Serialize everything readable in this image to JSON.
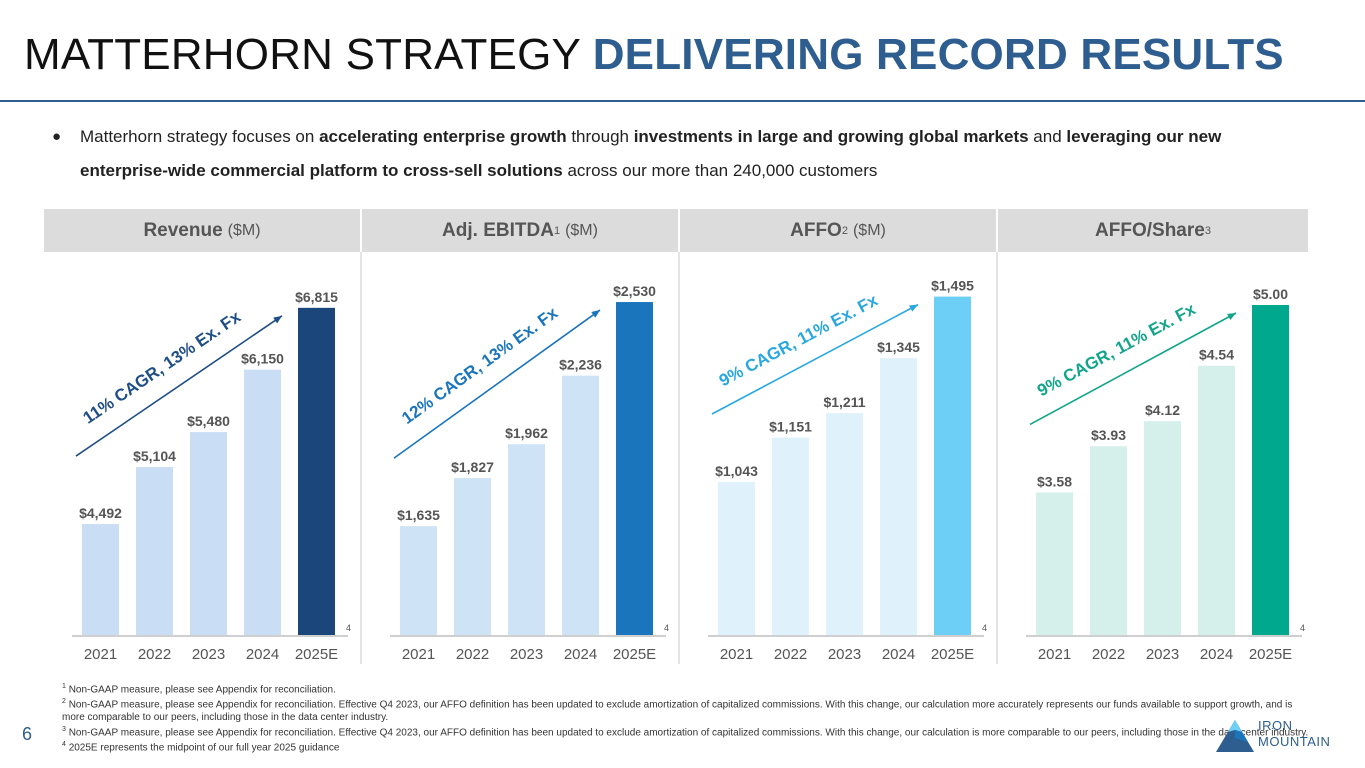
{
  "page": {
    "title_main": "MATTERHORN STRATEGY ",
    "title_accent": "DELIVERING RECORD RESULTS",
    "page_number": "6"
  },
  "bullet": {
    "symbol": "●",
    "t1": "Matterhorn strategy focuses on ",
    "b1": "accelerating enterprise growth",
    "t2": " through ",
    "b2": "investments in large and growing global markets",
    "t3": " and ",
    "b3": "leveraging our new enterprise-wide commercial platform to cross-sell solutions",
    "t4": " across our more than 240,000 customers"
  },
  "headers": [
    {
      "name": "Revenue",
      "unit": "($M)",
      "sup": ""
    },
    {
      "name": "Adj. EBITDA",
      "unit": "($M)",
      "sup": "1"
    },
    {
      "name": "AFFO",
      "unit": "($M)",
      "sup": "2"
    },
    {
      "name": "AFFO/Share",
      "unit": "",
      "sup": "3"
    }
  ],
  "chart_data": [
    {
      "type": "bar",
      "title": "Revenue ($M)",
      "categories": [
        "2021",
        "2022",
        "2023",
        "2024",
        "2025E"
      ],
      "values": [
        4492,
        5104,
        5480,
        6150,
        6815
      ],
      "labels": [
        "$4,492",
        "$5,104",
        "$5,480",
        "$6,150",
        "$6,815"
      ],
      "ylim": [
        3300,
        7200
      ],
      "colors": [
        "#c9ddf4",
        "#c9ddf4",
        "#c9ddf4",
        "#c9ddf4",
        "#1a467c"
      ],
      "annotation": "11% CAGR, 13% Ex. Fx",
      "annotation_color": "#1f4e86",
      "footnote_ref": "4"
    },
    {
      "type": "bar",
      "title": "Adj. EBITDA ($M)",
      "categories": [
        "2021",
        "2022",
        "2023",
        "2024",
        "2025E"
      ],
      "values": [
        1635,
        1827,
        1962,
        2236,
        2530
      ],
      "labels": [
        "$1,635",
        "$1,827",
        "$1,962",
        "$2,236",
        "$2,530"
      ],
      "ylim": [
        1200,
        2650
      ],
      "colors": [
        "#cfe3f6",
        "#cfe3f6",
        "#cfe3f6",
        "#cfe3f6",
        "#1b75bc"
      ],
      "annotation": "12% CAGR, 13% Ex. Fx",
      "annotation_color": "#1b75bc",
      "footnote_ref": "4"
    },
    {
      "type": "bar",
      "title": "AFFO ($M)",
      "categories": [
        "2021",
        "2022",
        "2023",
        "2024",
        "2025E"
      ],
      "values": [
        1043,
        1151,
        1211,
        1345,
        1495
      ],
      "labels": [
        "$1,043",
        "$1,151",
        "$1,211",
        "$1,345",
        "$1,495"
      ],
      "ylim": [
        670,
        1555
      ],
      "colors": [
        "#dff1fb",
        "#dff1fb",
        "#dff1fb",
        "#dff1fb",
        "#6dcff6"
      ],
      "annotation": "9% CAGR, 11% Ex. Fx",
      "annotation_color": "#29a8e0",
      "footnote_ref": "4"
    },
    {
      "type": "bar",
      "title": "AFFO/Share",
      "categories": [
        "2021",
        "2022",
        "2023",
        "2024",
        "2025E"
      ],
      "values": [
        3.58,
        3.93,
        4.12,
        4.54,
        5.0
      ],
      "labels": [
        "$3.58",
        "$3.93",
        "$4.12",
        "$4.54",
        "$5.00"
      ],
      "ylim": [
        2.5,
        5.25
      ],
      "colors": [
        "#d5efea",
        "#d5efea",
        "#d5efea",
        "#d5efea",
        "#00a88e"
      ],
      "annotation": "9% CAGR, 11% Ex. Fx",
      "annotation_color": "#12a58a",
      "footnote_ref": "4"
    }
  ],
  "footnotes": [
    {
      "num": "1",
      "text": "Non-GAAP measure, please see Appendix for reconciliation."
    },
    {
      "num": "2",
      "text": "Non-GAAP measure, please see Appendix for reconciliation. Effective Q4 2023, our AFFO definition has been updated to exclude amortization of capitalized commissions. With this change, our calculation more accurately represents our funds available to support growth, and is more comparable to our peers, including those in the data center industry."
    },
    {
      "num": "3",
      "text": "Non-GAAP measure, please see Appendix for reconciliation. Effective Q4 2023, our AFFO definition has been updated to exclude amortization of capitalized commissions. With this change, our calculation is more comparable to our peers, including those in the data center industry."
    },
    {
      "num": "4",
      "text": "2025E represents the midpoint of our full year 2025 guidance"
    }
  ],
  "logo": {
    "line1": "IRON",
    "line2": "MOUNTAIN"
  }
}
